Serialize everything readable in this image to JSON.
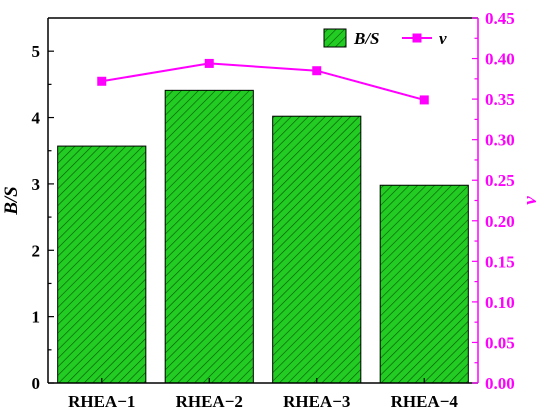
{
  "chart_data": {
    "type": "bar",
    "categories": [
      "RHEA−1",
      "RHEA−2",
      "RHEA−3",
      "RHEA−4"
    ],
    "series": [
      {
        "name": "B/S",
        "type": "bar",
        "axis": "left",
        "values": [
          3.57,
          4.41,
          4.02,
          2.98
        ],
        "color": "#22cc22"
      },
      {
        "name": "v",
        "type": "line",
        "axis": "right",
        "values": [
          0.372,
          0.394,
          0.385,
          0.349
        ],
        "color": "#ff00ff"
      }
    ],
    "ylabel": "B/S",
    "ylabel_right": "v",
    "ylim": [
      0,
      5.5
    ],
    "ylim_right": [
      0,
      0.45
    ],
    "yticks": [
      "0",
      "1",
      "2",
      "3",
      "4",
      "5"
    ],
    "yticks_right": [
      "0.00",
      "0.05",
      "0.10",
      "0.15",
      "0.20",
      "0.25",
      "0.30",
      "0.35",
      "0.40",
      "0.45"
    ],
    "legend_position": "top-right",
    "grid": false,
    "bar_hatch": "diagonal"
  }
}
